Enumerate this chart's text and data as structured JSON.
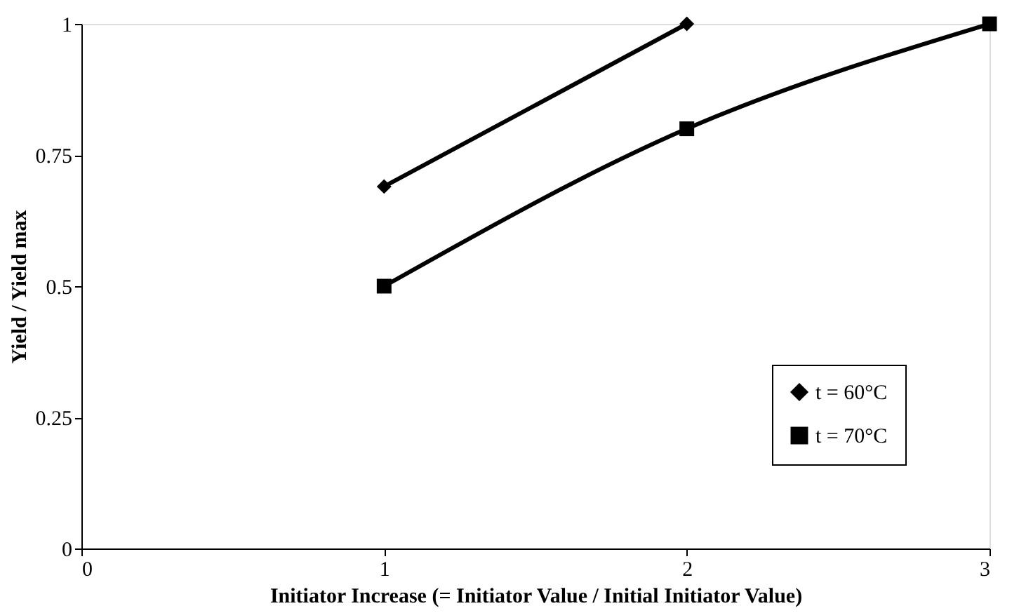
{
  "chart_data": {
    "type": "line",
    "xlabel": "Initiator Increase (= Initiator Value / Initial Initiator Value)",
    "ylabel": "Yield / Yield max",
    "xlim": [
      0,
      3
    ],
    "xticks": [
      0,
      1,
      2,
      3
    ],
    "ylim": [
      0,
      1
    ],
    "yticks": [
      0,
      0.25,
      0.5,
      0.75,
      1
    ],
    "grid": false,
    "legend": "bottom right",
    "series": [
      {
        "name": "t = 60°C",
        "color": "#000000",
        "marker": "diamond",
        "x": [
          1,
          2
        ],
        "values": [
          0.69,
          1.0
        ]
      },
      {
        "name": "t = 70°C",
        "color": "#000000",
        "marker": "square",
        "x": [
          1,
          2,
          3
        ],
        "values": [
          0.5,
          0.8,
          1.0
        ]
      }
    ]
  }
}
